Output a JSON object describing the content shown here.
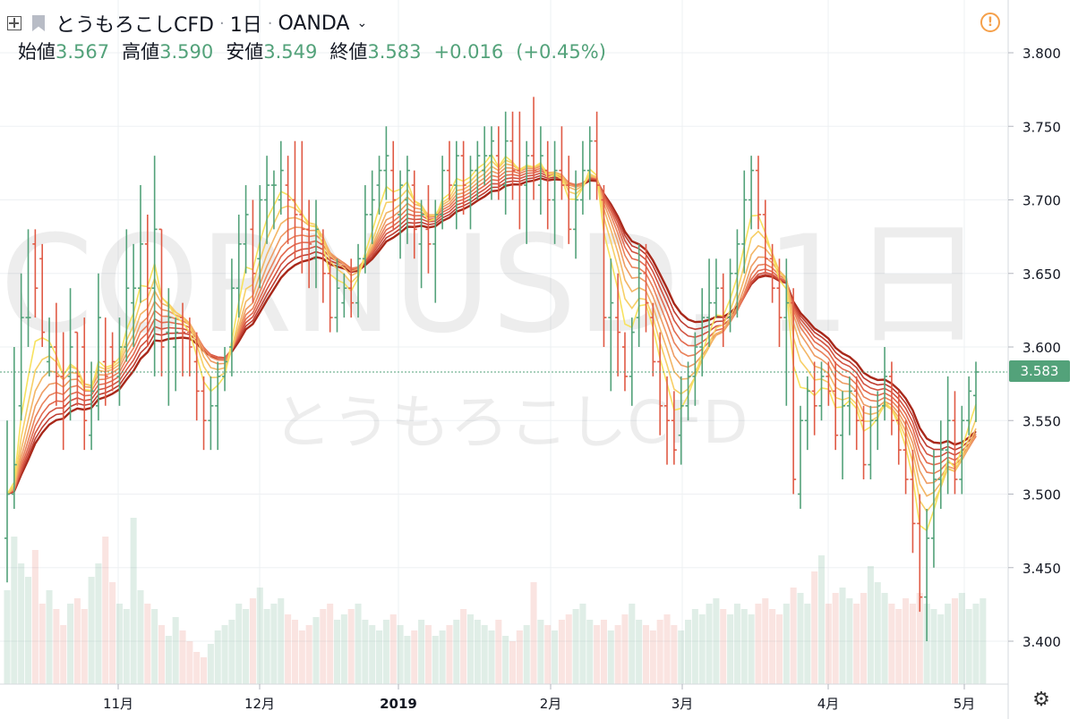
{
  "header": {
    "symbol": "とうもろこしCFD",
    "interval": "1日",
    "exchange": "OANDA",
    "open_label": "始値",
    "open": "3.567",
    "high_label": "高値",
    "high": "3.590",
    "low_label": "安値",
    "low": "3.549",
    "close_label": "終値",
    "close": "3.583",
    "change": "+0.016",
    "change_pct": "(+0.45%)"
  },
  "watermark": {
    "line1": "CORNUSD, 1日",
    "line2": "とうもろこしCFD"
  },
  "icons": {
    "expand": "expand-icon",
    "flag": "flag-icon",
    "alert": "alert-icon",
    "settings": "gear-icon",
    "dropdown": "chevron-down-icon"
  },
  "colors": {
    "up": "#53a27a",
    "down": "#e05a45",
    "ribbon_fast": "#f8e36b",
    "ribbon_slow": "#a8281a"
  },
  "chart_data": {
    "type": "candlestick",
    "ylim": [
      3.38,
      3.82
    ],
    "y_ticks": [
      "3.800",
      "3.750",
      "3.700",
      "3.650",
      "3.600",
      "3.550",
      "3.500",
      "3.450",
      "3.400"
    ],
    "x_ticks": [
      "11月",
      "12月",
      "2019",
      "2月",
      "3月",
      "4月",
      "5月"
    ],
    "last_price": "3.583",
    "bars": [
      [
        3.47,
        3.55,
        3.44,
        3.5
      ],
      [
        3.5,
        3.6,
        3.49,
        3.52
      ],
      [
        3.56,
        3.65,
        3.55,
        3.62
      ],
      [
        3.62,
        3.68,
        3.6,
        3.62
      ],
      [
        3.67,
        3.68,
        3.62,
        3.64
      ],
      [
        3.66,
        3.67,
        3.6,
        3.61
      ],
      [
        3.59,
        3.62,
        3.58,
        3.6
      ],
      [
        3.6,
        3.63,
        3.56,
        3.58
      ],
      [
        3.58,
        3.61,
        3.53,
        3.56
      ],
      [
        3.58,
        3.64,
        3.55,
        3.6
      ],
      [
        3.61,
        3.61,
        3.56,
        3.58
      ],
      [
        3.6,
        3.62,
        3.53,
        3.55
      ],
      [
        3.54,
        3.59,
        3.53,
        3.57
      ],
      [
        3.56,
        3.65,
        3.55,
        3.62
      ],
      [
        3.59,
        3.62,
        3.56,
        3.58
      ],
      [
        3.6,
        3.61,
        3.57,
        3.59
      ],
      [
        3.58,
        3.62,
        3.56,
        3.6
      ],
      [
        3.6,
        3.68,
        3.59,
        3.64
      ],
      [
        3.63,
        3.67,
        3.6,
        3.64
      ],
      [
        3.64,
        3.71,
        3.63,
        3.67
      ],
      [
        3.67,
        3.69,
        3.6,
        3.64
      ],
      [
        3.64,
        3.73,
        3.58,
        3.68
      ],
      [
        3.68,
        3.68,
        3.58,
        3.6
      ],
      [
        3.61,
        3.64,
        3.56,
        3.62
      ],
      [
        3.6,
        3.62,
        3.57,
        3.61
      ],
      [
        3.62,
        3.63,
        3.58,
        3.61
      ],
      [
        3.61,
        3.62,
        3.58,
        3.6
      ],
      [
        3.59,
        3.61,
        3.55,
        3.57
      ],
      [
        3.57,
        3.58,
        3.53,
        3.55
      ],
      [
        3.55,
        3.58,
        3.53,
        3.56
      ],
      [
        3.56,
        3.59,
        3.53,
        3.58
      ],
      [
        3.58,
        3.6,
        3.57,
        3.59
      ],
      [
        3.6,
        3.66,
        3.58,
        3.64
      ],
      [
        3.64,
        3.69,
        3.62,
        3.67
      ],
      [
        3.67,
        3.71,
        3.65,
        3.69
      ],
      [
        3.68,
        3.7,
        3.63,
        3.65
      ],
      [
        3.66,
        3.71,
        3.64,
        3.7
      ],
      [
        3.7,
        3.73,
        3.67,
        3.71
      ],
      [
        3.71,
        3.72,
        3.68,
        3.71
      ],
      [
        3.7,
        3.74,
        3.69,
        3.72
      ],
      [
        3.71,
        3.73,
        3.67,
        3.7
      ],
      [
        3.7,
        3.74,
        3.66,
        3.69
      ],
      [
        3.69,
        3.74,
        3.65,
        3.68
      ],
      [
        3.68,
        3.7,
        3.64,
        3.67
      ],
      [
        3.66,
        3.7,
        3.64,
        3.68
      ],
      [
        3.67,
        3.68,
        3.63,
        3.65
      ],
      [
        3.65,
        3.66,
        3.61,
        3.62
      ],
      [
        3.62,
        3.66,
        3.61,
        3.64
      ],
      [
        3.63,
        3.65,
        3.62,
        3.64
      ],
      [
        3.64,
        3.66,
        3.62,
        3.63
      ],
      [
        3.63,
        3.67,
        3.62,
        3.66
      ],
      [
        3.66,
        3.71,
        3.65,
        3.69
      ],
      [
        3.69,
        3.72,
        3.67,
        3.7
      ],
      [
        3.71,
        3.73,
        3.69,
        3.72
      ],
      [
        3.72,
        3.75,
        3.7,
        3.73
      ],
      [
        3.72,
        3.74,
        3.68,
        3.7
      ],
      [
        3.69,
        3.72,
        3.66,
        3.71
      ],
      [
        3.7,
        3.73,
        3.67,
        3.72
      ],
      [
        3.71,
        3.72,
        3.66,
        3.68
      ],
      [
        3.67,
        3.7,
        3.64,
        3.69
      ],
      [
        3.68,
        3.71,
        3.65,
        3.67
      ],
      [
        3.67,
        3.7,
        3.63,
        3.69
      ],
      [
        3.69,
        3.73,
        3.68,
        3.72
      ],
      [
        3.72,
        3.74,
        3.7,
        3.71
      ],
      [
        3.71,
        3.74,
        3.68,
        3.73
      ],
      [
        3.73,
        3.74,
        3.69,
        3.71
      ],
      [
        3.7,
        3.73,
        3.68,
        3.72
      ],
      [
        3.72,
        3.74,
        3.7,
        3.73
      ],
      [
        3.72,
        3.75,
        3.71,
        3.73
      ],
      [
        3.73,
        3.75,
        3.7,
        3.74
      ],
      [
        3.73,
        3.75,
        3.7,
        3.71
      ],
      [
        3.71,
        3.76,
        3.69,
        3.74
      ],
      [
        3.74,
        3.76,
        3.7,
        3.72
      ],
      [
        3.72,
        3.76,
        3.68,
        3.71
      ],
      [
        3.71,
        3.74,
        3.67,
        3.73
      ],
      [
        3.73,
        3.77,
        3.7,
        3.72
      ],
      [
        3.71,
        3.75,
        3.69,
        3.73
      ],
      [
        3.72,
        3.74,
        3.68,
        3.7
      ],
      [
        3.7,
        3.74,
        3.67,
        3.72
      ],
      [
        3.72,
        3.75,
        3.7,
        3.71
      ],
      [
        3.71,
        3.73,
        3.67,
        3.68
      ],
      [
        3.68,
        3.72,
        3.66,
        3.7
      ],
      [
        3.7,
        3.74,
        3.69,
        3.72
      ],
      [
        3.72,
        3.75,
        3.7,
        3.74
      ],
      [
        3.74,
        3.76,
        3.7,
        3.71
      ],
      [
        3.7,
        3.71,
        3.6,
        3.62
      ],
      [
        3.62,
        3.66,
        3.57,
        3.63
      ],
      [
        3.62,
        3.65,
        3.58,
        3.61
      ],
      [
        3.6,
        3.61,
        3.57,
        3.58
      ],
      [
        3.58,
        3.62,
        3.56,
        3.61
      ],
      [
        3.62,
        3.67,
        3.6,
        3.65
      ],
      [
        3.65,
        3.67,
        3.61,
        3.63
      ],
      [
        3.62,
        3.63,
        3.58,
        3.59
      ],
      [
        3.59,
        3.61,
        3.54,
        3.56
      ],
      [
        3.56,
        3.58,
        3.52,
        3.55
      ],
      [
        3.55,
        3.57,
        3.52,
        3.53
      ],
      [
        3.54,
        3.58,
        3.52,
        3.56
      ],
      [
        3.56,
        3.59,
        3.55,
        3.58
      ],
      [
        3.58,
        3.61,
        3.56,
        3.6
      ],
      [
        3.6,
        3.64,
        3.58,
        3.62
      ],
      [
        3.62,
        3.66,
        3.6,
        3.63
      ],
      [
        3.63,
        3.66,
        3.62,
        3.64
      ],
      [
        3.64,
        3.65,
        3.6,
        3.62
      ],
      [
        3.62,
        3.66,
        3.61,
        3.65
      ],
      [
        3.65,
        3.68,
        3.62,
        3.67
      ],
      [
        3.67,
        3.72,
        3.65,
        3.7
      ],
      [
        3.7,
        3.73,
        3.68,
        3.72
      ],
      [
        3.72,
        3.73,
        3.68,
        3.69
      ],
      [
        3.69,
        3.7,
        3.65,
        3.66
      ],
      [
        3.66,
        3.67,
        3.63,
        3.64
      ],
      [
        3.64,
        3.66,
        3.6,
        3.62
      ],
      [
        3.62,
        3.66,
        3.56,
        3.63
      ],
      [
        3.63,
        3.64,
        3.5,
        3.51
      ],
      [
        3.5,
        3.56,
        3.49,
        3.55
      ],
      [
        3.55,
        3.58,
        3.53,
        3.57
      ],
      [
        3.57,
        3.59,
        3.54,
        3.56
      ],
      [
        3.56,
        3.59,
        3.55,
        3.58
      ],
      [
        3.58,
        3.59,
        3.56,
        3.57
      ],
      [
        3.57,
        3.59,
        3.53,
        3.54
      ],
      [
        3.54,
        3.57,
        3.51,
        3.56
      ],
      [
        3.56,
        3.58,
        3.54,
        3.57
      ],
      [
        3.57,
        3.58,
        3.53,
        3.55
      ],
      [
        3.55,
        3.56,
        3.51,
        3.52
      ],
      [
        3.52,
        3.56,
        3.51,
        3.55
      ],
      [
        3.55,
        3.57,
        3.53,
        3.56
      ],
      [
        3.56,
        3.6,
        3.55,
        3.58
      ],
      [
        3.58,
        3.59,
        3.54,
        3.55
      ],
      [
        3.55,
        3.57,
        3.52,
        3.53
      ],
      [
        3.53,
        3.55,
        3.5,
        3.51
      ],
      [
        3.51,
        3.53,
        3.46,
        3.48
      ],
      [
        3.48,
        3.5,
        3.42,
        3.43
      ],
      [
        3.43,
        3.49,
        3.4,
        3.47
      ],
      [
        3.47,
        3.53,
        3.45,
        3.51
      ],
      [
        3.51,
        3.55,
        3.49,
        3.53
      ],
      [
        3.53,
        3.58,
        3.5,
        3.55
      ],
      [
        3.55,
        3.57,
        3.5,
        3.51
      ],
      [
        3.51,
        3.56,
        3.5,
        3.55
      ],
      [
        3.55,
        3.58,
        3.54,
        3.57
      ],
      [
        3.567,
        3.59,
        3.549,
        3.583
      ]
    ],
    "volume": [
      0.35,
      0.55,
      0.45,
      0.4,
      0.5,
      0.3,
      0.35,
      0.28,
      0.22,
      0.3,
      0.32,
      0.28,
      0.4,
      0.45,
      0.55,
      0.38,
      0.3,
      0.28,
      0.62,
      0.35,
      0.3,
      0.28,
      0.22,
      0.18,
      0.25,
      0.2,
      0.16,
      0.12,
      0.1,
      0.15,
      0.2,
      0.22,
      0.24,
      0.3,
      0.28,
      0.32,
      0.36,
      0.28,
      0.3,
      0.32,
      0.26,
      0.24,
      0.2,
      0.22,
      0.25,
      0.28,
      0.3,
      0.24,
      0.26,
      0.28,
      0.3,
      0.24,
      0.22,
      0.2,
      0.24,
      0.26,
      0.22,
      0.18,
      0.2,
      0.24,
      0.22,
      0.18,
      0.2,
      0.22,
      0.24,
      0.28,
      0.26,
      0.24,
      0.22,
      0.2,
      0.24,
      0.18,
      0.16,
      0.2,
      0.22,
      0.38,
      0.24,
      0.22,
      0.2,
      0.24,
      0.26,
      0.28,
      0.3,
      0.24,
      0.22,
      0.24,
      0.2,
      0.22,
      0.26,
      0.3,
      0.24,
      0.22,
      0.2,
      0.24,
      0.26,
      0.22,
      0.2,
      0.24,
      0.28,
      0.26,
      0.3,
      0.32,
      0.28,
      0.26,
      0.3,
      0.28,
      0.26,
      0.3,
      0.32,
      0.28,
      0.26,
      0.3,
      0.36,
      0.34,
      0.3,
      0.42,
      0.48,
      0.3,
      0.34,
      0.36,
      0.32,
      0.3,
      0.34,
      0.44,
      0.38,
      0.34,
      0.3,
      0.28,
      0.32,
      0.3,
      0.34,
      0.3,
      0.28,
      0.26,
      0.3,
      0.32,
      0.34,
      0.28,
      0.3,
      0.32
    ],
    "ribbon_colors": [
      "#f7e25f",
      "#f7cf66",
      "#f3b666",
      "#ee9c63",
      "#e9815a",
      "#e26a4f",
      "#d25442",
      "#bf3e32",
      "#a8281a"
    ],
    "ribbon_periods": [
      4,
      6,
      8,
      10,
      12,
      14,
      16,
      18,
      20
    ]
  }
}
